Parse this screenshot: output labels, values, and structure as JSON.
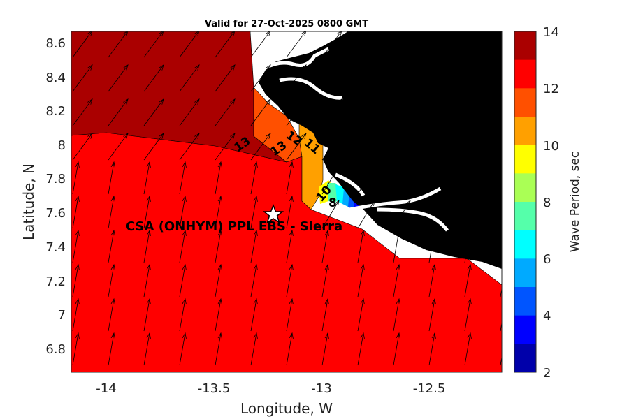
{
  "title": "Valid for 27-Oct-2025 0800 GMT",
  "xlabel": "Longitude, W",
  "ylabel": "Latitude, N",
  "colorbar_label": "Wave Period, sec",
  "x_ticks": [
    "-14",
    "-13.5",
    "-13",
    "-12.5"
  ],
  "y_ticks": [
    "8.6",
    "8.4",
    "8.2",
    "8",
    "7.8",
    "7.6",
    "7.4",
    "7.2",
    "7",
    "6.8"
  ],
  "colorbar_ticks": [
    "14",
    "12",
    "10",
    "8",
    "6",
    "4",
    "2"
  ],
  "station_label": "CSA (ONHYM) PPL EBS  - Sierra",
  "contour_labels": [
    "13",
    "13",
    "12",
    "11",
    "10",
    "8"
  ],
  "colors": {
    "land": "#000000",
    "dark_red": "#aa0000",
    "red": "#ff0000",
    "orange": "#ff5000",
    "amber": "#ffa000"
  },
  "colorbar_colors": [
    "#aa0000",
    "#ff0000",
    "#ff5000",
    "#ffa000",
    "#ffff00",
    "#aaff55",
    "#55ffaa",
    "#00ffff",
    "#00aaff",
    "#0055ff",
    "#0000ff",
    "#0000aa"
  ],
  "chart_data": {
    "type": "map",
    "title": "Valid for 27-Oct-2025 0800 GMT",
    "xlabel": "Longitude, W",
    "ylabel": "Latitude, N",
    "xlim": [
      -14.2,
      -12.18
    ],
    "ylim": [
      6.66,
      8.67
    ],
    "colorbar": {
      "label": "Wave Period, sec",
      "range": [
        2,
        14
      ],
      "step": 1
    },
    "regions": [
      {
        "period_range": [
          13,
          14
        ],
        "area": "northwest offshore"
      },
      {
        "period_range": [
          12,
          13
        ],
        "area": "main offshore field"
      },
      {
        "period_range": [
          11,
          12
        ],
        "area": "near-coast strip"
      },
      {
        "period_range": [
          10,
          11
        ],
        "area": "near-coast strip"
      },
      {
        "period_range": [
          2,
          10
        ],
        "area": "nearshore gradient near -12.9 W, 7.65 N"
      }
    ],
    "contour_labels": [
      13,
      13,
      12,
      11,
      10,
      8
    ],
    "station": {
      "name": "CSA (ONHYM) PPL EBS  - Sierra",
      "lon": -13.22,
      "lat": 7.59
    },
    "vectors": "wave direction arrows, predominantly toward north-northeast"
  }
}
